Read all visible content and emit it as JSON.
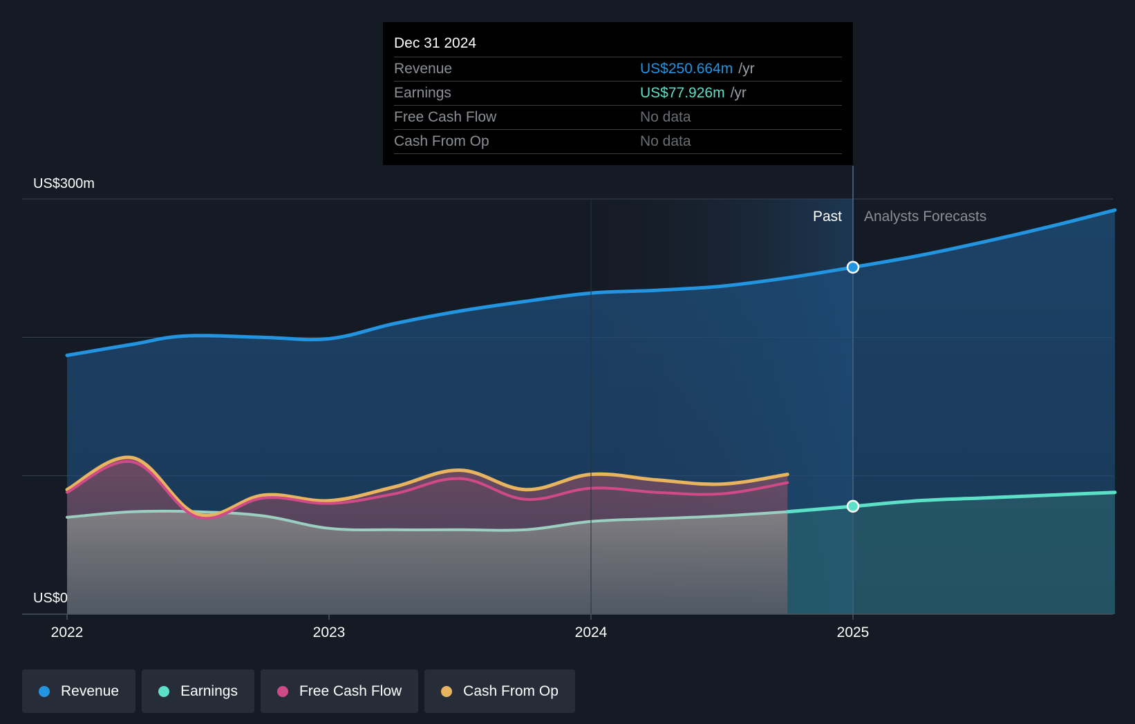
{
  "chart_data": {
    "type": "area",
    "x_ticks": [
      "2022",
      "2023",
      "2024",
      "2025"
    ],
    "y_range": [
      0,
      300
    ],
    "y_label_top": "US$300m",
    "y_label_bottom": "US$0",
    "past_label": "Past",
    "forecast_label": "Analysts Forecasts",
    "series": [
      {
        "name": "Revenue",
        "color": "#2394e0",
        "points": [
          [
            2022.0,
            187
          ],
          [
            2022.25,
            195
          ],
          [
            2022.45,
            201
          ],
          [
            2022.75,
            200
          ],
          [
            2023.0,
            199
          ],
          [
            2023.25,
            210
          ],
          [
            2023.5,
            219
          ],
          [
            2023.75,
            226
          ],
          [
            2024.0,
            232
          ],
          [
            2024.25,
            234
          ],
          [
            2024.5,
            237
          ],
          [
            2024.75,
            243
          ],
          [
            2025.0,
            250.664
          ],
          [
            2025.25,
            259
          ],
          [
            2025.5,
            269
          ],
          [
            2025.75,
            280
          ],
          [
            2026.0,
            292
          ]
        ]
      },
      {
        "name": "Earnings",
        "color": "#5de0c8",
        "points": [
          [
            2022.0,
            70
          ],
          [
            2022.25,
            74
          ],
          [
            2022.5,
            74
          ],
          [
            2022.75,
            71
          ],
          [
            2023.0,
            62
          ],
          [
            2023.25,
            61
          ],
          [
            2023.5,
            61
          ],
          [
            2023.75,
            61
          ],
          [
            2024.0,
            67
          ],
          [
            2024.25,
            69
          ],
          [
            2024.5,
            71
          ],
          [
            2024.75,
            74
          ],
          [
            2025.0,
            77.926
          ],
          [
            2025.25,
            82
          ],
          [
            2025.5,
            84
          ],
          [
            2025.75,
            86
          ],
          [
            2026.0,
            88
          ]
        ]
      },
      {
        "name": "Free Cash Flow",
        "color": "#d04a8a",
        "points": [
          [
            2022.0,
            88
          ],
          [
            2022.25,
            110
          ],
          [
            2022.5,
            70
          ],
          [
            2022.75,
            84
          ],
          [
            2023.0,
            80
          ],
          [
            2023.25,
            87
          ],
          [
            2023.5,
            98
          ],
          [
            2023.75,
            83
          ],
          [
            2024.0,
            91
          ],
          [
            2024.25,
            88
          ],
          [
            2024.5,
            87
          ],
          [
            2024.75,
            95
          ]
        ]
      },
      {
        "name": "Cash From Op",
        "color": "#e8b460",
        "points": [
          [
            2022.0,
            90
          ],
          [
            2022.25,
            113
          ],
          [
            2022.5,
            72
          ],
          [
            2022.75,
            86
          ],
          [
            2023.0,
            82
          ],
          [
            2023.25,
            92
          ],
          [
            2023.5,
            104
          ],
          [
            2023.75,
            90
          ],
          [
            2024.0,
            101
          ],
          [
            2024.25,
            97
          ],
          [
            2024.5,
            94
          ],
          [
            2024.75,
            101
          ]
        ]
      }
    ],
    "highlight_date": "Dec 31 2024",
    "tooltip_rows": [
      {
        "label": "Revenue",
        "value": "US$250.664m",
        "unit": "/yr",
        "color": "#2394e0"
      },
      {
        "label": "Earnings",
        "value": "US$77.926m",
        "unit": "/yr",
        "color": "#5de0c8"
      },
      {
        "label": "Free Cash Flow",
        "value": "No data",
        "unit": "",
        "color": "#6a6e73"
      },
      {
        "label": "Cash From Op",
        "value": "No data",
        "unit": "",
        "color": "#6a6e73"
      }
    ]
  },
  "legend": [
    {
      "label": "Revenue",
      "color": "#2394e0"
    },
    {
      "label": "Earnings",
      "color": "#5de0c8"
    },
    {
      "label": "Free Cash Flow",
      "color": "#d04a8a"
    },
    {
      "label": "Cash From Op",
      "color": "#e8b460"
    }
  ]
}
